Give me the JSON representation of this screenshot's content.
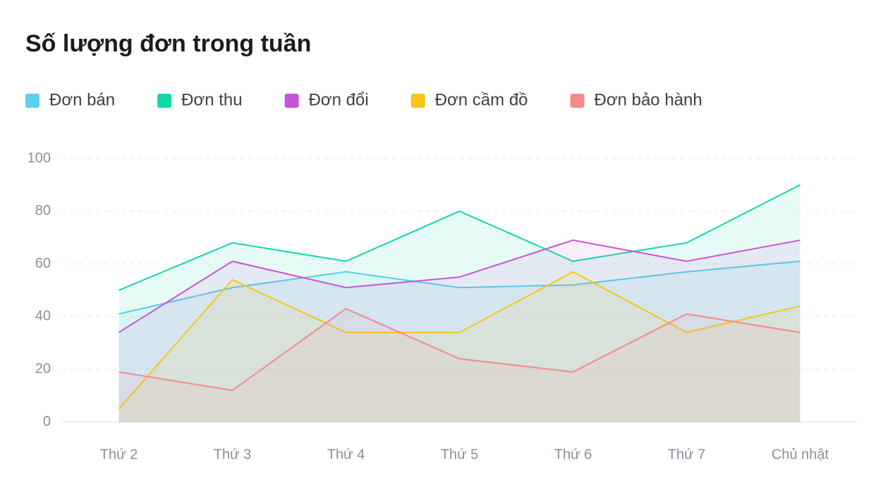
{
  "chart_data": {
    "type": "area",
    "title": "Số lượng đơn trong tuần",
    "categories": [
      "Thứ 2",
      "Thứ 3",
      "Thứ 4",
      "Thứ 5",
      "Thứ 6",
      "Thứ 7",
      "Chủ nhật"
    ],
    "series": [
      {
        "name": "Đơn bán",
        "color": "#5ccfee",
        "values": [
          41,
          51,
          57,
          51,
          52,
          57,
          61
        ]
      },
      {
        "name": "Đơn thu",
        "color": "#14d7a8",
        "values": [
          50,
          68,
          61,
          80,
          61,
          68,
          90
        ]
      },
      {
        "name": "Đơn đổi",
        "color": "#c655d6",
        "values": [
          34,
          61,
          51,
          55,
          69,
          61,
          69
        ]
      },
      {
        "name": "Đơn cầm đồ",
        "color": "#f5c518",
        "values": [
          5,
          54,
          34,
          34,
          57,
          34,
          44
        ]
      },
      {
        "name": "Đơn bảo hành",
        "color": "#f48a8a",
        "values": [
          19,
          12,
          43,
          24,
          19,
          41,
          34
        ]
      }
    ],
    "ylim": [
      0,
      100
    ],
    "yticks": [
      0,
      20,
      40,
      60,
      80,
      100
    ],
    "grid": true,
    "legend": "top"
  }
}
